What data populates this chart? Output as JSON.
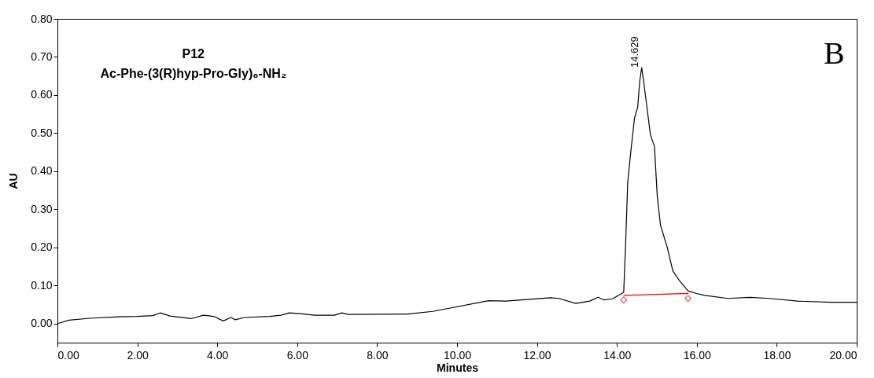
{
  "chart_data": {
    "type": "line",
    "xlabel": "Minutes",
    "ylabel": "AU",
    "xlim": [
      0,
      20
    ],
    "ylim": [
      -0.05,
      0.8
    ],
    "xticks": [
      {
        "value": 0,
        "label": "0.00"
      },
      {
        "value": 2,
        "label": "2.00"
      },
      {
        "value": 4,
        "label": "4.00"
      },
      {
        "value": 6,
        "label": "6.00"
      },
      {
        "value": 8,
        "label": "8.00"
      },
      {
        "value": 10,
        "label": "10.00"
      },
      {
        "value": 12,
        "label": "12.00"
      },
      {
        "value": 14,
        "label": "14.00"
      },
      {
        "value": 16,
        "label": "16.00"
      },
      {
        "value": 18,
        "label": "18.00"
      },
      {
        "value": 20,
        "label": "20.00"
      }
    ],
    "yticks": [
      {
        "value": 0,
        "label": "0.00"
      },
      {
        "value": 0.1,
        "label": "0.10"
      },
      {
        "value": 0.2,
        "label": "0.20"
      },
      {
        "value": 0.3,
        "label": "0.30"
      },
      {
        "value": 0.4,
        "label": "0.40"
      },
      {
        "value": 0.5,
        "label": "0.50"
      },
      {
        "value": 0.6,
        "label": "0.60"
      },
      {
        "value": 0.7,
        "label": "0.70"
      },
      {
        "value": 0.8,
        "label": "0.80"
      }
    ],
    "grid": false,
    "series": [
      {
        "color": "#000000",
        "marker": "none",
        "x": [
          0,
          0.29,
          0.81,
          1.52,
          2.0,
          2.39,
          2.57,
          2.82,
          3.34,
          3.66,
          3.91,
          4.15,
          4.34,
          4.45,
          4.68,
          5.31,
          5.59,
          5.8,
          6.08,
          6.44,
          6.93,
          7.12,
          7.28,
          8.76,
          9.39,
          10.79,
          11.22,
          12.34,
          12.55,
          12.97,
          13.32,
          13.53,
          13.68,
          13.89,
          14.17,
          14.22,
          14.27,
          14.34,
          14.44,
          14.52,
          14.57,
          14.62,
          14.67,
          14.84,
          14.94,
          15.01,
          15.09,
          15.26,
          15.4,
          15.57,
          15.78,
          15.99,
          16.2,
          16.77,
          17.33,
          17.82,
          18.52,
          19.36,
          20
        ],
        "values": [
          0,
          0.009,
          0.014,
          0.018,
          0.019,
          0.021,
          0.028,
          0.02,
          0.013,
          0.022,
          0.019,
          0.007,
          0.016,
          0.01,
          0.016,
          0.019,
          0.022,
          0.028,
          0.026,
          0.022,
          0.022,
          0.028,
          0.024,
          0.025,
          0.032,
          0.06,
          0.059,
          0.068,
          0.066,
          0.053,
          0.059,
          0.069,
          0.062,
          0.065,
          0.082,
          0.215,
          0.37,
          0.444,
          0.539,
          0.568,
          0.635,
          0.672,
          0.635,
          0.495,
          0.465,
          0.333,
          0.259,
          0.2,
          0.138,
          0.112,
          0.086,
          0.079,
          0.074,
          0.066,
          0.069,
          0.066,
          0.059,
          0.056,
          0.056
        ]
      },
      {
        "color": "#ff0000",
        "marker": "none",
        "x": [
          14.17,
          15.78
        ],
        "values": [
          0.074,
          0.079
        ]
      },
      {
        "color": "#ff0000",
        "type": "scatter",
        "marker": "diamond",
        "x": [
          14.17,
          15.78
        ],
        "values": [
          0.062,
          0.066
        ]
      }
    ],
    "annotations": [
      "P12",
      "Ac-Phe-(3(R)hyp-Pro-Gly)₆-NH₂",
      "B",
      {
        "text": "14.629",
        "x": 14.629,
        "y": 0.672
      }
    ]
  }
}
